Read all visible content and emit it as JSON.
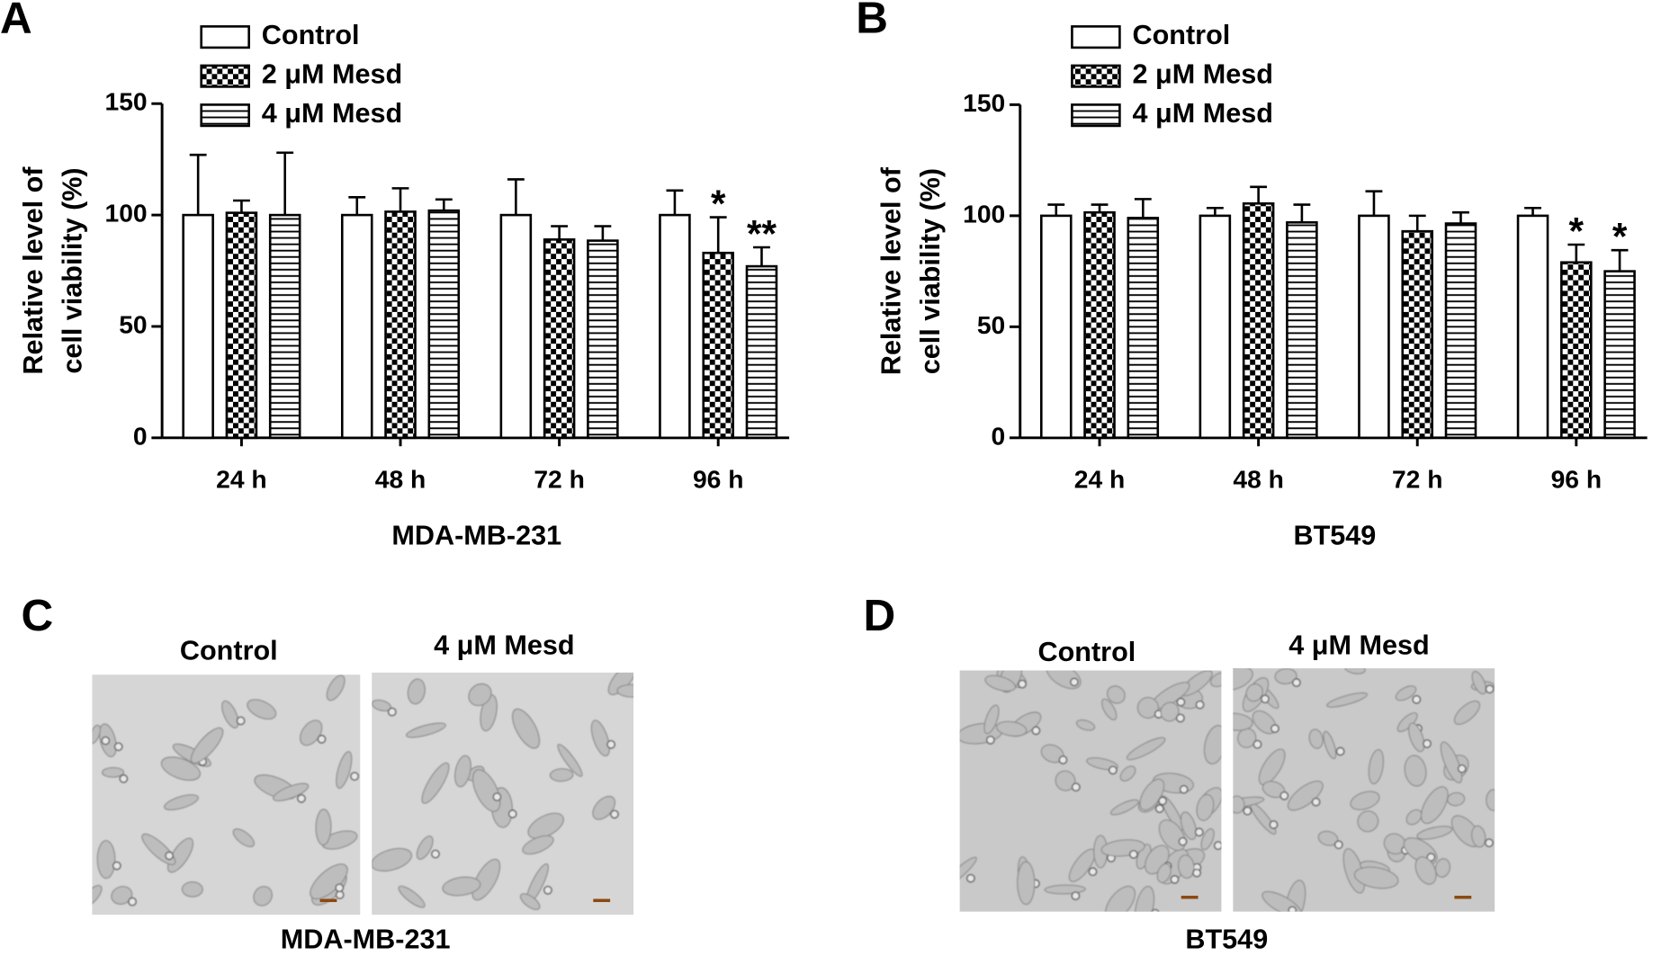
{
  "chart_data": [
    {
      "type": "bar",
      "panel_label": "A",
      "ylabel": [
        "Relative level of",
        "cell viability (%)"
      ],
      "xlabel": "MDA-MB-231",
      "categories": [
        "24 h",
        "48 h",
        "72 h",
        "96 h"
      ],
      "ylim": [
        0,
        150
      ],
      "yticks": [
        0,
        50,
        100,
        150
      ],
      "series": [
        {
          "name": "Control",
          "color": "#ffffff",
          "pattern": "none",
          "values": [
            100,
            100,
            100,
            100
          ],
          "errors": [
            27,
            8,
            16,
            11
          ],
          "annotations": [
            null,
            null,
            null,
            null
          ]
        },
        {
          "name": "2 μM Mesd",
          "color": "#000000",
          "pattern": "checker",
          "values": [
            101,
            101.5,
            89,
            83
          ],
          "errors": [
            5.5,
            10.5,
            6,
            16
          ],
          "annotations": [
            null,
            null,
            null,
            "*"
          ]
        },
        {
          "name": "4 μM Mesd",
          "color": "#000000",
          "pattern": "hlines",
          "values": [
            100,
            102,
            88.5,
            77
          ],
          "errors": [
            28,
            5,
            6.5,
            8.5
          ],
          "annotations": [
            null,
            null,
            null,
            "**"
          ]
        }
      ]
    },
    {
      "type": "bar",
      "panel_label": "B",
      "ylabel": [
        "Relative level of",
        "cell viability (%)"
      ],
      "xlabel": "BT549",
      "categories": [
        "24 h",
        "48 h",
        "72 h",
        "96 h"
      ],
      "ylim": [
        0,
        150
      ],
      "yticks": [
        0,
        50,
        100,
        150
      ],
      "series": [
        {
          "name": "Control",
          "color": "#ffffff",
          "pattern": "none",
          "values": [
            100,
            100,
            100,
            100
          ],
          "errors": [
            5,
            3.5,
            11,
            3.5
          ],
          "annotations": [
            null,
            null,
            null,
            null
          ]
        },
        {
          "name": "2 μM Mesd",
          "color": "#000000",
          "pattern": "checker",
          "values": [
            101.5,
            105.5,
            93,
            79
          ],
          "errors": [
            3.5,
            7.5,
            7,
            8
          ],
          "annotations": [
            null,
            null,
            null,
            "*"
          ]
        },
        {
          "name": "4 μM Mesd",
          "color": "#000000",
          "pattern": "hlines",
          "values": [
            99,
            97,
            96.5,
            75
          ],
          "errors": [
            8.5,
            8,
            5,
            9.5
          ],
          "annotations": [
            null,
            null,
            null,
            "*"
          ]
        }
      ]
    }
  ],
  "image_panels": [
    {
      "label": "C",
      "titles": [
        "Control",
        "4 μM Mesd"
      ],
      "caption": "MDA-MB-231"
    },
    {
      "label": "D",
      "titles": [
        "Control",
        "4 μM Mesd"
      ],
      "caption": "BT549"
    }
  ]
}
